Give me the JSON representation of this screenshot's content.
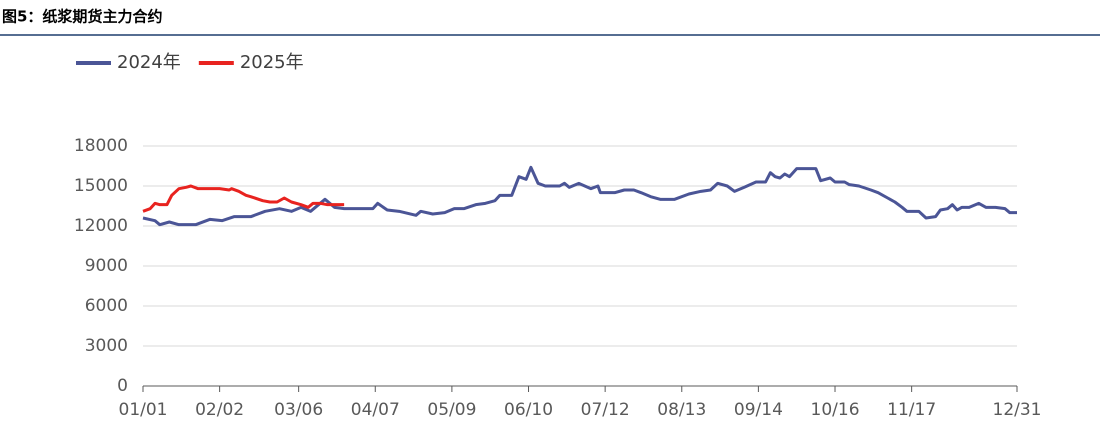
{
  "chart_data": {
    "type": "line",
    "title": "图5：纸浆期货主力合约",
    "xlim": [
      0,
      365
    ],
    "xticks": [
      {
        "value": 0,
        "label": "01/01"
      },
      {
        "value": 32,
        "label": "02/02"
      },
      {
        "value": 65,
        "label": "03/06"
      },
      {
        "value": 97,
        "label": "04/07"
      },
      {
        "value": 129,
        "label": "05/09"
      },
      {
        "value": 161,
        "label": "06/10"
      },
      {
        "value": 193,
        "label": "07/12"
      },
      {
        "value": 225,
        "label": "08/13"
      },
      {
        "value": 257,
        "label": "09/14"
      },
      {
        "value": 289,
        "label": "10/16"
      },
      {
        "value": 321,
        "label": "11/17"
      },
      {
        "value": 365,
        "label": "12/31"
      }
    ],
    "ylim": [
      0,
      18000
    ],
    "yticks": [
      0,
      3000,
      6000,
      9000,
      12000,
      15000,
      18000
    ],
    "grid": true,
    "series": [
      {
        "name": "2024年",
        "color": "#4b5596",
        "x": [
          0,
          5,
          7,
          11,
          15,
          22,
          28,
          33,
          38,
          45,
          51,
          57,
          62,
          66,
          70,
          76,
          80,
          84,
          91,
          96,
          98,
          102,
          107,
          114,
          116,
          121,
          126,
          130,
          134,
          139,
          143,
          147,
          149,
          154,
          157,
          160,
          162,
          165,
          168,
          174,
          176,
          178,
          182,
          187,
          190,
          191,
          197,
          201,
          205,
          208,
          212,
          216,
          222,
          228,
          233,
          237,
          240,
          244,
          247,
          251,
          256,
          260,
          262,
          264,
          266,
          268,
          270,
          273,
          281,
          283,
          287,
          289,
          293,
          295,
          299,
          304,
          307,
          311,
          314,
          317,
          319,
          324,
          327,
          331,
          333,
          336,
          338,
          340,
          342,
          345,
          349,
          352,
          356,
          360,
          362,
          365
        ],
        "values": [
          12600,
          12400,
          12100,
          12300,
          12100,
          12100,
          12500,
          12400,
          12700,
          12700,
          13100,
          13300,
          13100,
          13400,
          13100,
          14000,
          13400,
          13300,
          13300,
          13300,
          13700,
          13200,
          13100,
          12800,
          13100,
          12900,
          13000,
          13300,
          13300,
          13600,
          13700,
          13900,
          14300,
          14300,
          15700,
          15500,
          16400,
          15200,
          15000,
          15000,
          15200,
          14900,
          15200,
          14800,
          15000,
          14500,
          14500,
          14700,
          14700,
          14500,
          14200,
          14000,
          14000,
          14400,
          14600,
          14700,
          15200,
          15000,
          14600,
          14900,
          15300,
          15300,
          16000,
          15700,
          15600,
          15900,
          15700,
          16300,
          16300,
          15400,
          15600,
          15300,
          15300,
          15100,
          15000,
          14700,
          14500,
          14100,
          13800,
          13400,
          13100,
          13100,
          12600,
          12700,
          13200,
          13300,
          13600,
          13200,
          13400,
          13400,
          13700,
          13400,
          13400,
          13300,
          13000,
          13000
        ]
      },
      {
        "name": "2025年",
        "color": "#e8231f",
        "x": [
          0,
          3,
          5,
          7,
          10,
          12,
          15,
          18,
          20,
          23,
          28,
          32,
          36,
          37,
          40,
          43,
          45,
          50,
          53,
          56,
          59,
          62,
          66,
          69,
          71,
          74,
          77,
          80,
          84
        ],
        "values": [
          13100,
          13300,
          13700,
          13600,
          13600,
          14300,
          14800,
          14900,
          15000,
          14800,
          14800,
          14800,
          14700,
          14800,
          14600,
          14300,
          14200,
          13900,
          13800,
          13800,
          14100,
          13800,
          13600,
          13400,
          13700,
          13700,
          13600,
          13600,
          13600
        ]
      }
    ]
  }
}
